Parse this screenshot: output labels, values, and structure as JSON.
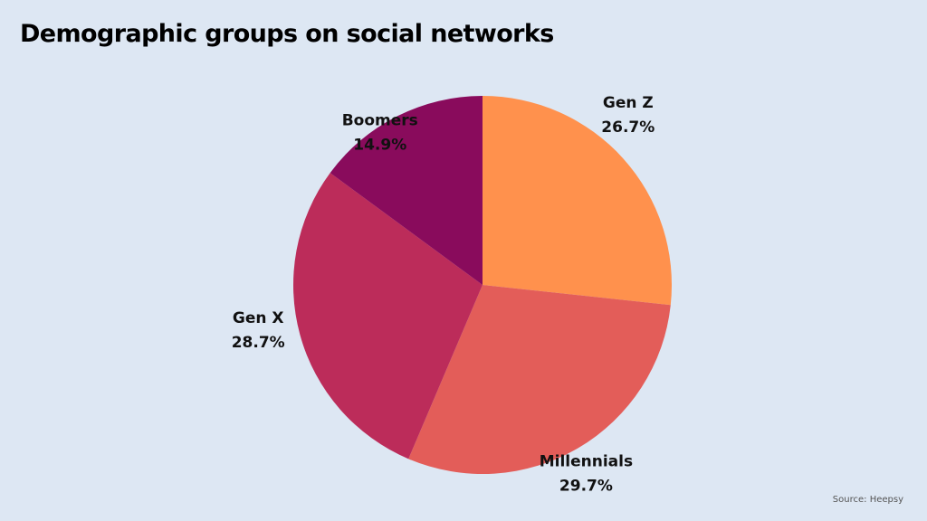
{
  "chart_data": {
    "type": "pie",
    "title": "Demographic groups on social networks",
    "slices": [
      {
        "label": "Gen Z",
        "value": 26.7,
        "value_label": "26.7%",
        "color": "#ff914d"
      },
      {
        "label": "Millennials",
        "value": 29.7,
        "value_label": "29.7%",
        "color": "#e35d59"
      },
      {
        "label": "Gen X",
        "value": 28.7,
        "value_label": "28.7%",
        "color": "#bc2c5a"
      },
      {
        "label": "Boomers",
        "value": 14.9,
        "value_label": "14.9%",
        "color": "#890b5c"
      }
    ],
    "start_angle": "12 o'clock",
    "direction": "clockwise"
  },
  "source": "Source: Heepsy"
}
